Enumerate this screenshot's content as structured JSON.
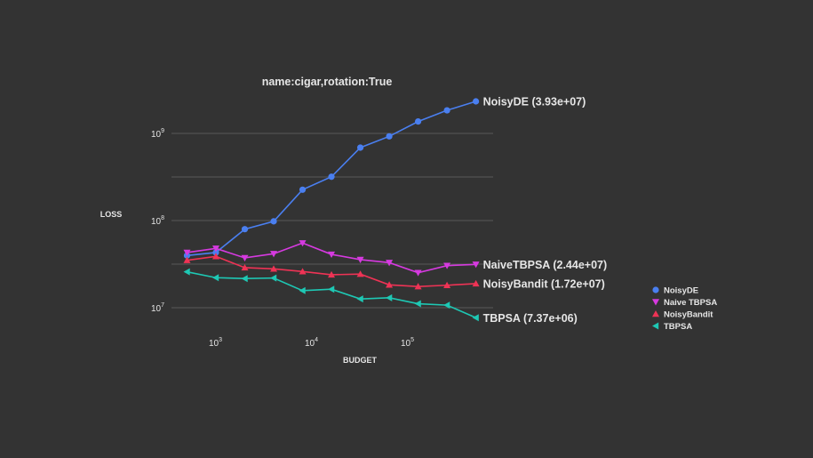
{
  "chart_data": {
    "type": "line",
    "title": "name:cigar,rotation:True",
    "xlabel": "BUDGET",
    "ylabel": "LOSS",
    "xscale": "log",
    "yscale": "log",
    "xlim": [
      370,
      700000
    ],
    "ylim": [
      5700000,
      3160000000
    ],
    "grid": true,
    "legend_placement": "right",
    "background": "#333333",
    "x_ticks": [
      {
        "value": 1000,
        "base": "10",
        "exp": "3"
      },
      {
        "value": 10000,
        "base": "10",
        "exp": "4"
      },
      {
        "value": 100000,
        "base": "10",
        "exp": "5"
      }
    ],
    "y_ticks": [
      {
        "value": 10000000,
        "base": "10",
        "exp": "7"
      },
      {
        "value": 100000000,
        "base": "10",
        "exp": "8"
      },
      {
        "value": 1000000000,
        "base": "10",
        "exp": "9"
      }
    ],
    "x": [
      500,
      1000,
      2000,
      4000,
      8000,
      16000,
      32000,
      64000,
      128000,
      256000,
      512000
    ],
    "series": [
      {
        "name": "NoisyDE",
        "legend": "NoisyDE",
        "end_label": "NoisyDE (3.93e+07)",
        "color": "#4a7ff0",
        "marker": "circle",
        "values": [
          39700000,
          43000000,
          79600000,
          98000000,
          226000000,
          318000000,
          687000000,
          925000000,
          1370000000,
          1840000000,
          2330000000
        ]
      },
      {
        "name": "NaiveTBPSA",
        "legend": "Naive TBPSA",
        "end_label": "NaiveTBPSA (2.44e+07)",
        "color": "#d63ae0",
        "marker": "triangle-down",
        "values": [
          43000000,
          47900000,
          37300000,
          41600000,
          55200000,
          40900000,
          35600000,
          32900000,
          25200000,
          30400000,
          31400000
        ]
      },
      {
        "name": "NoisyBandit",
        "legend": "NoisyBandit",
        "end_label": "NoisyBandit (1.72e+07)",
        "color": "#ee3355",
        "marker": "triangle-up",
        "values": [
          35000000,
          38800000,
          28800000,
          27900000,
          26000000,
          23900000,
          24300000,
          18300000,
          17500000,
          18100000,
          18900000
        ]
      },
      {
        "name": "TBPSA",
        "legend": "TBPSA",
        "end_label": "TBPSA (7.37e+06)",
        "color": "#1ec8b4",
        "marker": "triangle-left",
        "values": [
          25800000,
          22100000,
          21600000,
          21900000,
          15700000,
          16300000,
          12600000,
          13000000,
          11100000,
          10700000,
          7670000
        ]
      }
    ]
  }
}
